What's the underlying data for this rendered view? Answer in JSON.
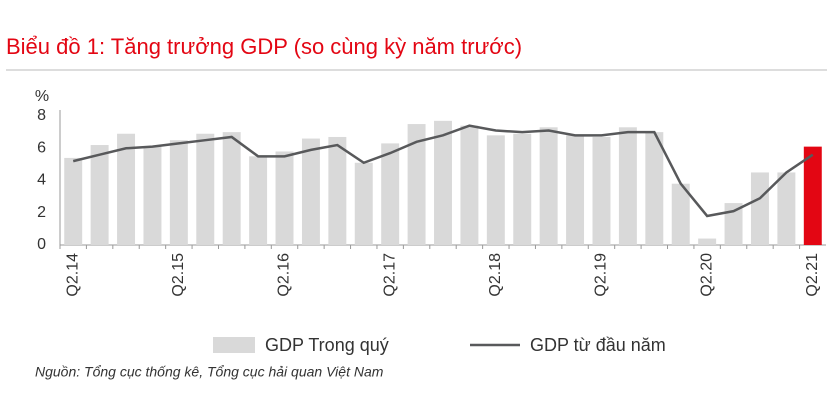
{
  "chart_data": {
    "type": "bar_line",
    "title": "Biểu đồ 1: Tăng trưởng GDP (so cùng kỳ năm trước)",
    "y_label": "%",
    "source": "Nguồn: Tổng cục thống kê, Tổng cục hải quan Việt Nam",
    "categories": [
      "Q2.14",
      null,
      null,
      null,
      "Q2.15",
      null,
      null,
      null,
      "Q2.16",
      null,
      null,
      null,
      "Q2.17",
      null,
      null,
      null,
      "Q2.18",
      null,
      null,
      null,
      "Q2.19",
      null,
      null,
      null,
      "Q2.20",
      null,
      null,
      null,
      "Q2.21"
    ],
    "series": [
      {
        "name": "GDP Trong quý",
        "kind": "bar",
        "color": "#d9d9d9",
        "colors": [
          "#d9d9d9",
          "#d9d9d9",
          "#d9d9d9",
          "#d9d9d9",
          "#d9d9d9",
          "#d9d9d9",
          "#d9d9d9",
          "#d9d9d9",
          "#d9d9d9",
          "#d9d9d9",
          "#d9d9d9",
          "#d9d9d9",
          "#d9d9d9",
          "#d9d9d9",
          "#d9d9d9",
          "#d9d9d9",
          "#d9d9d9",
          "#d9d9d9",
          "#d9d9d9",
          "#d9d9d9",
          "#d9d9d9",
          "#d9d9d9",
          "#d9d9d9",
          "#d9d9d9",
          "#d9d9d9",
          "#d9d9d9",
          "#d9d9d9",
          "#d9d9d9",
          "#e30613"
        ],
        "values": [
          5.4,
          6.2,
          6.9,
          6.1,
          6.5,
          6.9,
          7.0,
          5.5,
          5.8,
          6.6,
          6.7,
          5.1,
          6.3,
          7.5,
          7.7,
          7.4,
          6.8,
          6.9,
          7.3,
          6.8,
          6.7,
          7.3,
          7.0,
          3.8,
          0.4,
          2.6,
          4.5,
          4.5,
          6.1
        ]
      },
      {
        "name": "GDP từ đầu năm",
        "kind": "line",
        "color": "#58595b",
        "values": [
          5.2,
          5.6,
          6.0,
          6.1,
          6.3,
          6.5,
          6.7,
          5.5,
          5.5,
          5.9,
          6.2,
          5.1,
          5.7,
          6.4,
          6.8,
          7.4,
          7.1,
          7.0,
          7.1,
          6.8,
          6.8,
          7.0,
          7.0,
          3.8,
          1.8,
          2.1,
          2.9,
          4.5,
          5.6
        ]
      }
    ],
    "ylim": [
      0,
      8
    ],
    "yticks": [
      0,
      2,
      4,
      6,
      8
    ],
    "grid": false,
    "legend": "bottom"
  }
}
